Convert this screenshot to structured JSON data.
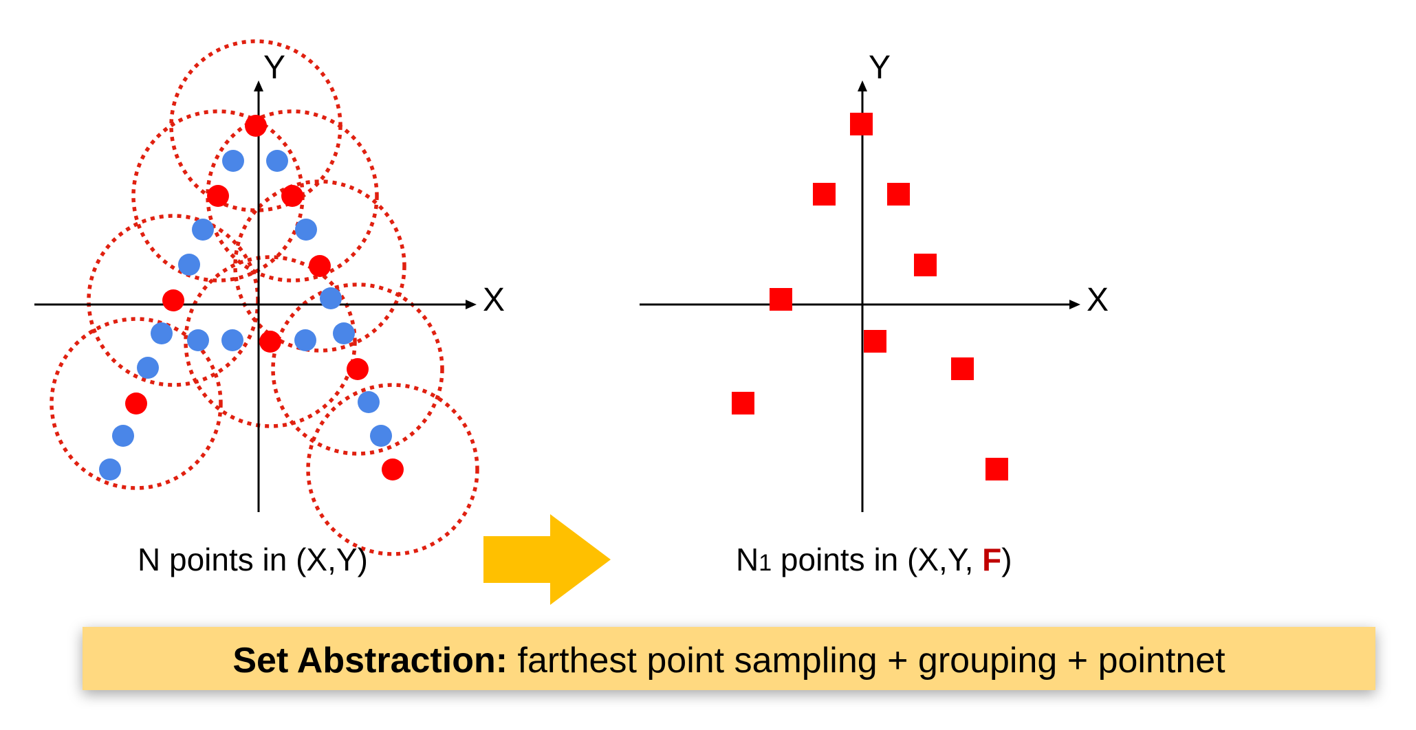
{
  "colors": {
    "sampled_point": "#ff0000",
    "neighbor_point": "#4a86e8",
    "group_circle": "#e02010",
    "arrow": "#ffc000",
    "banner_fill": "#ffd980",
    "feature_text": "#c00000"
  },
  "left_panel": {
    "axis_x_label": "X",
    "axis_y_label": "Y",
    "caption_prefix": "N points in (X,Y)"
  },
  "right_panel": {
    "axis_x_label": "X",
    "axis_y_label": "Y",
    "caption_n": "N",
    "caption_sub": "1",
    "caption_mid": " points in (X,Y, ",
    "caption_feature": "F",
    "caption_end": ")"
  },
  "banner": {
    "bold_text": "Set Abstraction:",
    "rest_text": " farthest point sampling + grouping + pointnet"
  }
}
